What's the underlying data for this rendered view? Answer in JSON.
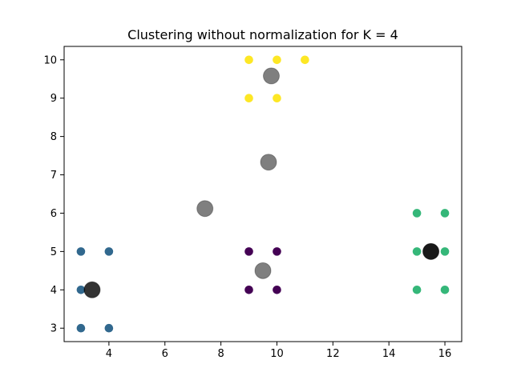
{
  "chart_data": {
    "type": "scatter",
    "title": "Clustering without normalization for K = 4",
    "xlabel": "",
    "ylabel": "",
    "xlim": [
      2.4,
      16.6
    ],
    "ylim": [
      2.65,
      10.35
    ],
    "x_ticks": [
      4,
      6,
      8,
      10,
      12,
      14,
      16
    ],
    "y_ticks": [
      3,
      4,
      5,
      6,
      7,
      8,
      9,
      10
    ],
    "grid": false,
    "legend": "none",
    "series": [
      {
        "color": "#440154",
        "points": [
          [
            9,
            4
          ],
          [
            10,
            4
          ],
          [
            9,
            5
          ],
          [
            10,
            5
          ]
        ]
      },
      {
        "color": "#31688e",
        "points": [
          [
            3,
            3
          ],
          [
            4,
            3
          ],
          [
            3,
            4
          ],
          [
            3,
            5
          ],
          [
            4,
            5
          ]
        ]
      },
      {
        "color": "#35b779",
        "points": [
          [
            15,
            4
          ],
          [
            16,
            4
          ],
          [
            15,
            5
          ],
          [
            16,
            5
          ],
          [
            15,
            6
          ],
          [
            16,
            6
          ]
        ]
      },
      {
        "color": "#fde725",
        "points": [
          [
            9,
            9
          ],
          [
            10,
            9
          ],
          [
            9,
            10
          ],
          [
            10,
            10
          ],
          [
            11,
            10
          ]
        ]
      }
    ],
    "centroid_trail": {
      "color": "#000000",
      "points": [
        [
          9.8,
          9.58,
          0.5
        ],
        [
          9.7,
          7.33,
          0.5
        ],
        [
          7.43,
          6.12,
          0.5
        ],
        [
          9.5,
          4.5,
          0.5
        ],
        [
          3.4,
          4.0,
          0.8
        ],
        [
          15.5,
          5.0,
          0.9
        ]
      ]
    }
  }
}
